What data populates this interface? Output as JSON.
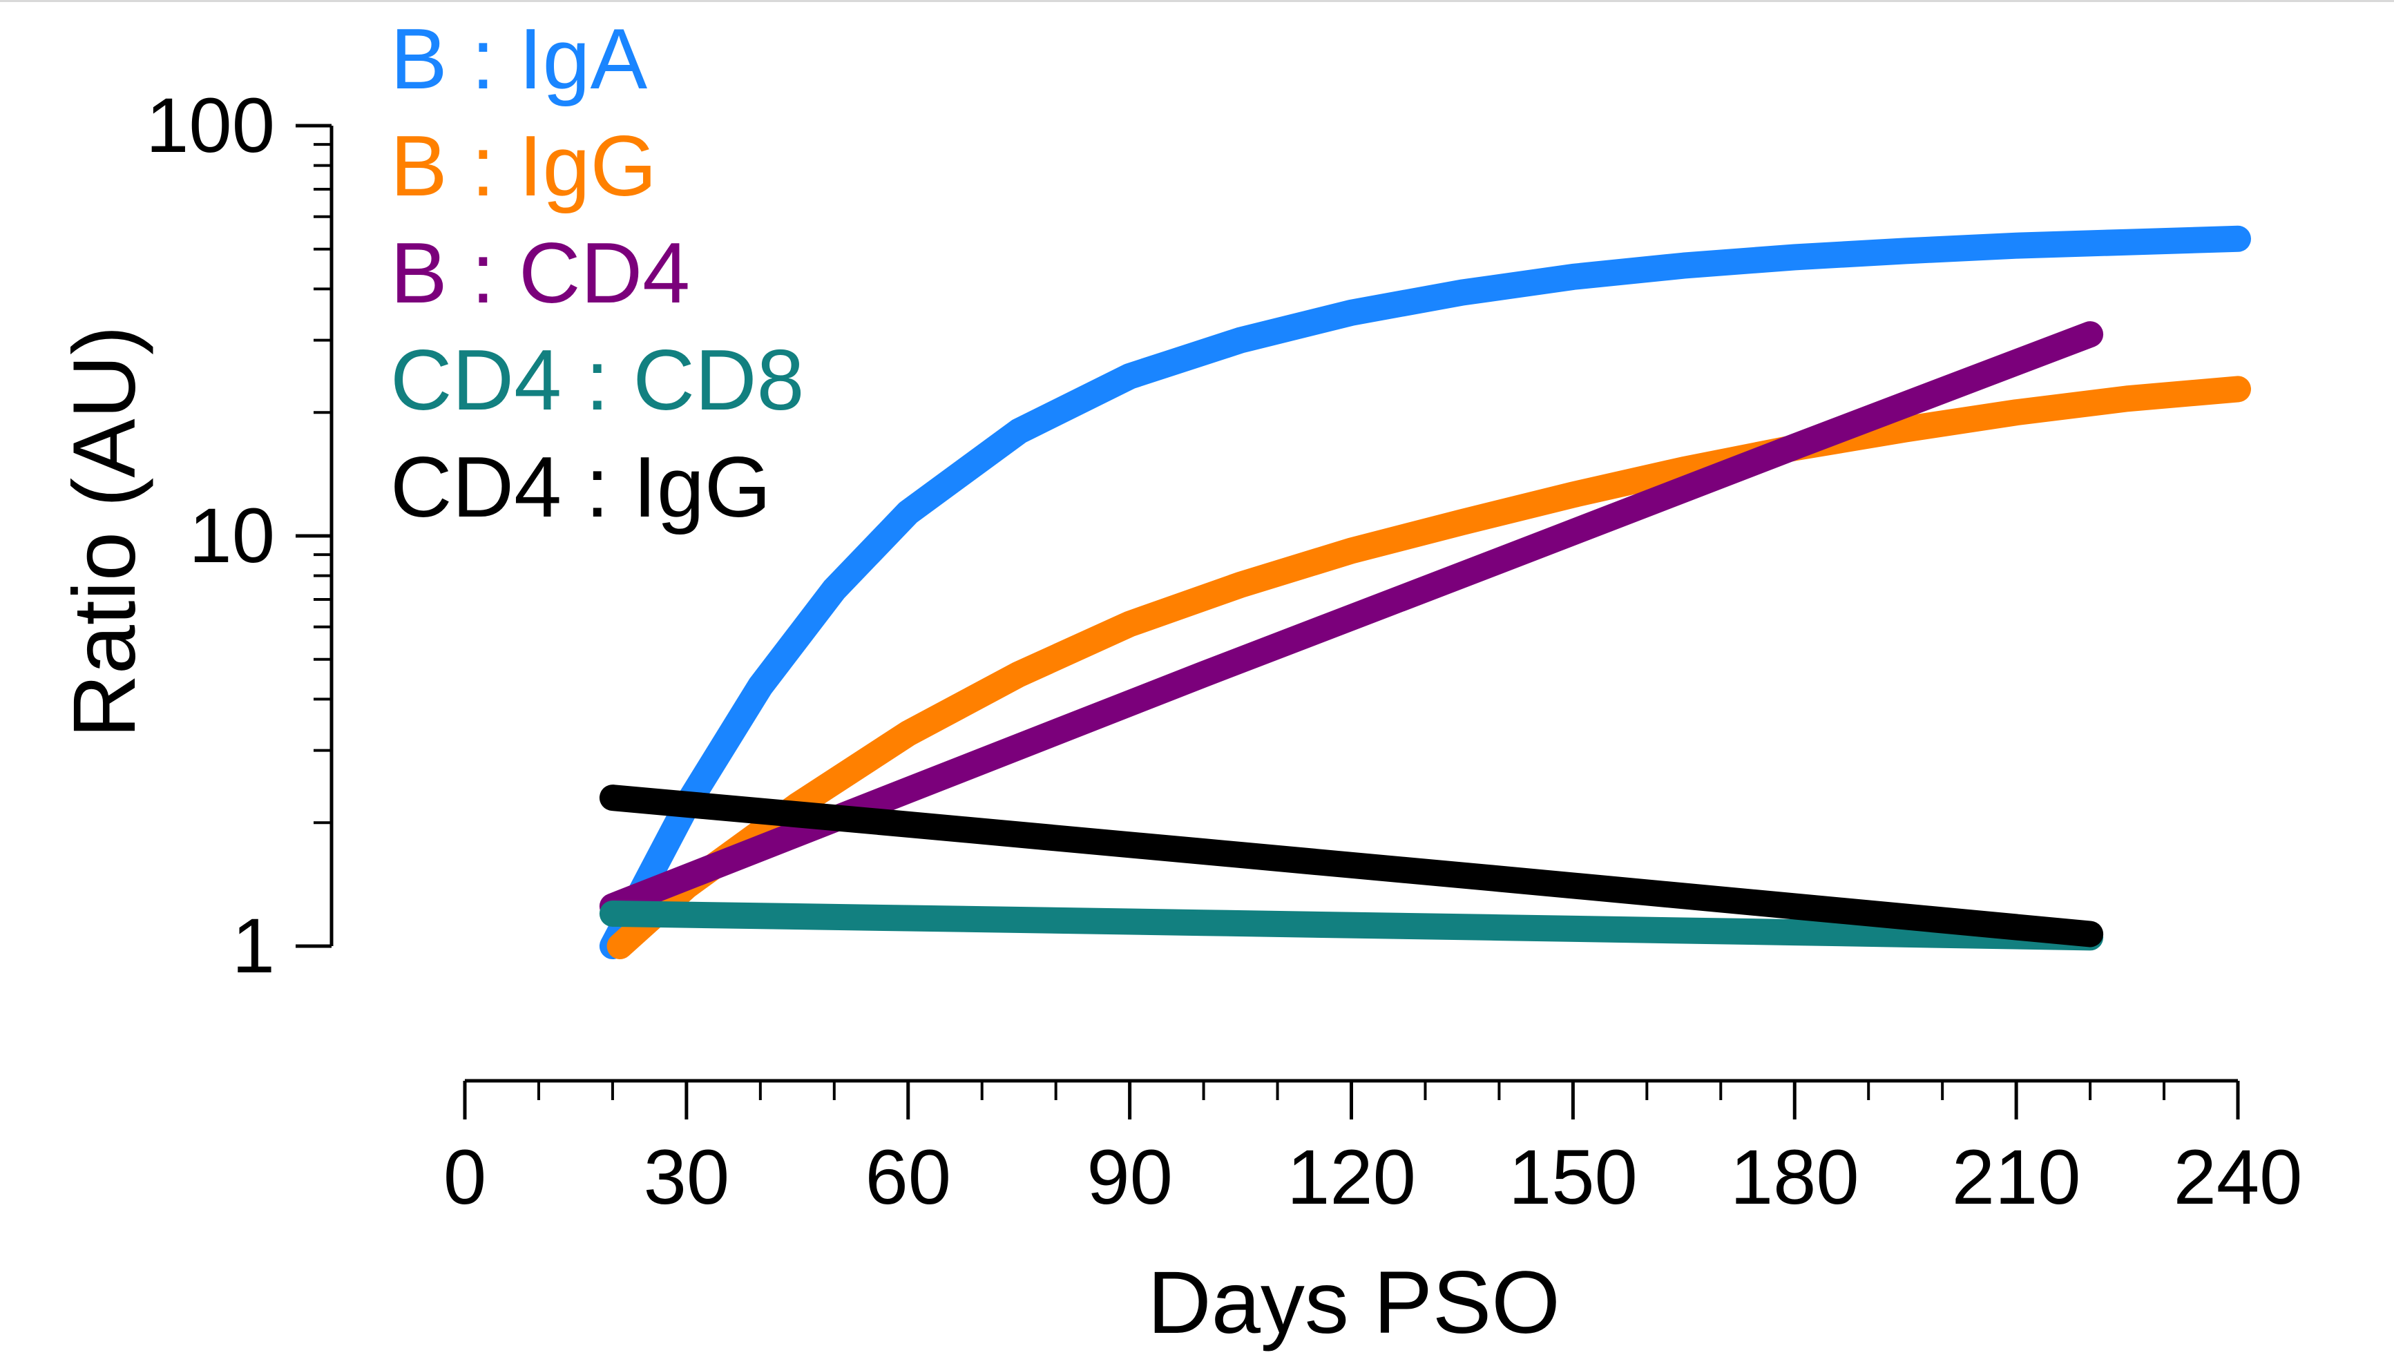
{
  "chart_data": {
    "type": "line",
    "title": "",
    "xlabel": "Days PSO",
    "ylabel": "Ratio (AU)",
    "xlim": [
      0,
      240
    ],
    "ylim": [
      1,
      100
    ],
    "yscale": "log",
    "grid": false,
    "legend_position": "top-left",
    "x_ticks": [
      {
        "value": 0,
        "label": "0"
      },
      {
        "value": 30,
        "label": "30"
      },
      {
        "value": 60,
        "label": "60"
      },
      {
        "value": 90,
        "label": "90"
      },
      {
        "value": 120,
        "label": "120"
      },
      {
        "value": 150,
        "label": "150"
      },
      {
        "value": 180,
        "label": "180"
      },
      {
        "value": 210,
        "label": "210"
      },
      {
        "value": 240,
        "label": "240"
      }
    ],
    "y_ticks": [
      {
        "value": 1,
        "label": "1"
      },
      {
        "value": 10,
        "label": "10"
      },
      {
        "value": 100,
        "label": "100"
      }
    ],
    "series": [
      {
        "name": "B : IgA",
        "color": "#1a85ff",
        "x": [
          20,
          30,
          40,
          50,
          60,
          75,
          90,
          105,
          120,
          135,
          150,
          165,
          180,
          195,
          210,
          225,
          240
        ],
        "y": [
          1.0,
          2.2,
          4.3,
          7.4,
          11.4,
          18.0,
          24.5,
          30.0,
          35.0,
          39.2,
          42.8,
          45.6,
          47.8,
          49.5,
          51.0,
          52.0,
          53.0
        ]
      },
      {
        "name": "B : IgG",
        "color": "#ff8000",
        "x": [
          21,
          30,
          45,
          60,
          75,
          90,
          105,
          120,
          135,
          150,
          165,
          180,
          195,
          210,
          225,
          240
        ],
        "y": [
          1.0,
          1.4,
          2.2,
          3.3,
          4.6,
          6.1,
          7.6,
          9.2,
          10.8,
          12.6,
          14.5,
          16.4,
          18.2,
          20.0,
          21.6,
          22.8
        ]
      },
      {
        "name": "B : CD4",
        "color": "#7b007b",
        "x": [
          20,
          60,
          100,
          140,
          180,
          220
        ],
        "y": [
          1.25,
          2.4,
          4.6,
          8.7,
          16.5,
          31.0
        ]
      },
      {
        "name": "CD4 : CD8",
        "color": "#128080",
        "x": [
          20,
          60,
          100,
          140,
          180,
          220
        ],
        "y": [
          1.2,
          1.17,
          1.14,
          1.11,
          1.08,
          1.05
        ]
      },
      {
        "name": "CD4 : IgG",
        "color": "#000000",
        "x": [
          20,
          60,
          100,
          140,
          180,
          220
        ],
        "y": [
          2.3,
          1.98,
          1.7,
          1.46,
          1.25,
          1.07
        ]
      }
    ]
  }
}
